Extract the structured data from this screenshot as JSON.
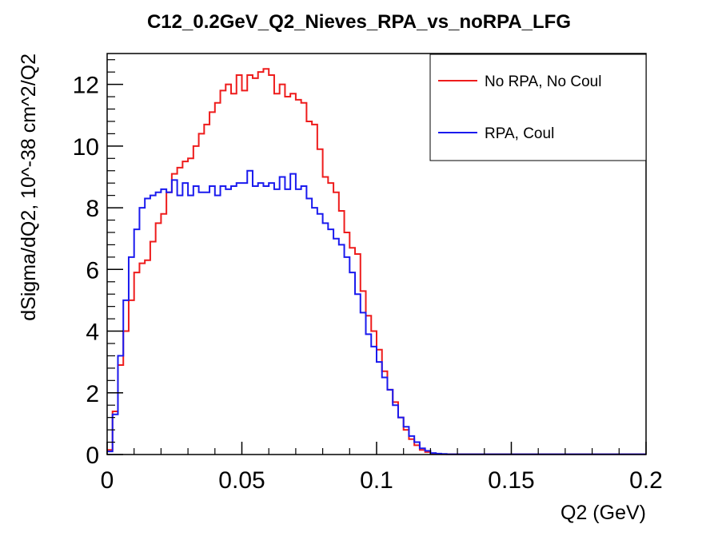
{
  "chart_data": {
    "type": "line",
    "title": "C12_0.2GeV_Q2_Nieves_RPA_vs_noRPA_LFG",
    "xlabel": "Q2 (GeV)",
    "ylabel": "dSigma/dQ2, 10^-38 cm^2/Q2",
    "xlim": [
      0,
      0.2
    ],
    "ylim": [
      0,
      13
    ],
    "x_ticks": [
      0,
      0.05,
      0.1,
      0.15,
      0.2
    ],
    "x_tick_labels": [
      "0",
      "0.05",
      "0.1",
      "0.15",
      "0.2"
    ],
    "y_ticks": [
      0,
      2,
      4,
      6,
      8,
      10,
      12
    ],
    "y_tick_labels": [
      "0",
      "2",
      "4",
      "6",
      "8",
      "10",
      "12"
    ],
    "grid": false,
    "legend_position": "top-right",
    "bins": {
      "count": 100,
      "min": 0,
      "max": 0.2
    },
    "series": [
      {
        "name": "No RPA, No Coul",
        "color": "#ee1c1c",
        "style": "step",
        "values": [
          0.15,
          1.4,
          2.9,
          4.0,
          5.0,
          5.9,
          6.2,
          6.3,
          6.9,
          7.5,
          7.8,
          8.5,
          9.1,
          9.3,
          9.5,
          9.6,
          10.0,
          10.4,
          10.7,
          11.1,
          11.4,
          11.8,
          12.0,
          11.7,
          12.3,
          11.8,
          12.3,
          12.2,
          12.4,
          12.5,
          12.3,
          11.7,
          12.0,
          11.6,
          11.7,
          11.5,
          11.4,
          10.8,
          10.7,
          9.9,
          9.0,
          8.8,
          8.5,
          7.9,
          7.2,
          6.7,
          6.5,
          5.3,
          4.5,
          4.0,
          3.4,
          2.7,
          2.1,
          1.7,
          1.2,
          0.8,
          0.5,
          0.3,
          0.15,
          0.08,
          0.04,
          0.02,
          0.01,
          0.01,
          0.01,
          0.01,
          0.01,
          0.01,
          0.01,
          0.01,
          0.01,
          0.01,
          0.01,
          0.01,
          0.01,
          0.01,
          0.01,
          0.01,
          0.01,
          0.01,
          0.01,
          0.01,
          0.01,
          0.01,
          0.01,
          0.01,
          0.01,
          0.01,
          0.01,
          0.01,
          0.01,
          0.01,
          0.01,
          0.01,
          0.01,
          0.01,
          0.01,
          0.01,
          0.01,
          0.01
        ]
      },
      {
        "name": "RPA, Coul",
        "color": "#1a1aee",
        "style": "step",
        "values": [
          0.1,
          1.3,
          3.2,
          5.0,
          6.4,
          7.3,
          8.0,
          8.3,
          8.4,
          8.5,
          8.6,
          8.5,
          8.9,
          8.4,
          8.8,
          8.4,
          8.7,
          8.5,
          8.5,
          8.7,
          8.4,
          8.7,
          8.6,
          8.7,
          8.8,
          8.8,
          9.2,
          8.7,
          8.8,
          8.7,
          8.8,
          8.6,
          9.0,
          8.6,
          9.1,
          8.6,
          8.7,
          8.3,
          8.0,
          7.8,
          7.5,
          7.3,
          7.0,
          6.8,
          6.4,
          5.9,
          5.2,
          4.6,
          3.9,
          3.5,
          3.0,
          2.5,
          2.1,
          1.6,
          1.2,
          0.9,
          0.6,
          0.4,
          0.2,
          0.12,
          0.05,
          0.03,
          0.02,
          0.01,
          0.01,
          0.01,
          0.01,
          0.01,
          0.01,
          0.01,
          0.01,
          0.01,
          0.01,
          0.01,
          0.01,
          0.01,
          0.01,
          0.01,
          0.01,
          0.01,
          0.01,
          0.01,
          0.01,
          0.01,
          0.01,
          0.01,
          0.01,
          0.01,
          0.01,
          0.01,
          0.01,
          0.01,
          0.01,
          0.01,
          0.01,
          0.01,
          0.01,
          0.01,
          0.01,
          0.01
        ]
      }
    ]
  }
}
